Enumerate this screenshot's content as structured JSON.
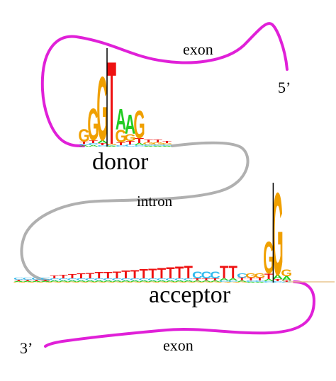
{
  "labels": {
    "exon_top": "exon",
    "prime5": "5’",
    "donor": "donor",
    "intron": "intron",
    "acceptor": "acceptor",
    "prime3": "3’",
    "exon_bottom": "exon"
  },
  "colors": {
    "exon_line": "#e020d8",
    "intron_line": "#b0b0b0",
    "A": "#22cc22",
    "C": "#33bbee",
    "G": "#f0a000",
    "T": "#ee1111",
    "splice_marker": "#000000"
  },
  "donor_logo": {
    "splice_position": 3,
    "stacks": [
      [
        "A",
        "C",
        "T",
        "G"
      ],
      [
        "A",
        "C",
        "T",
        "G"
      ],
      [
        "C",
        "T",
        "A",
        "G"
      ],
      [
        "A",
        "C",
        "G",
        "T"
      ],
      [
        "C",
        "T",
        "G",
        "A"
      ],
      [
        "C",
        "T",
        "G",
        "A"
      ],
      [
        "C",
        "A",
        "T",
        "G"
      ],
      [
        "A",
        "C",
        "G",
        "T"
      ],
      [
        "A",
        "C",
        "G",
        "T"
      ],
      [
        "A",
        "C",
        "G",
        "T"
      ]
    ]
  },
  "acceptor_logo": {
    "splice_position": 29,
    "stacks": [
      [
        "G",
        "A",
        "T",
        "C"
      ],
      [
        "G",
        "A",
        "T",
        "C"
      ],
      [
        "G",
        "A",
        "T",
        "C"
      ],
      [
        "G",
        "A",
        "T",
        "C"
      ],
      [
        "G",
        "A",
        "C",
        "T"
      ],
      [
        "G",
        "A",
        "C",
        "T"
      ],
      [
        "G",
        "A",
        "C",
        "T"
      ],
      [
        "G",
        "A",
        "C",
        "T"
      ],
      [
        "G",
        "A",
        "C",
        "T"
      ],
      [
        "G",
        "A",
        "C",
        "T"
      ],
      [
        "G",
        "A",
        "C",
        "T"
      ],
      [
        "G",
        "A",
        "C",
        "T"
      ],
      [
        "G",
        "A",
        "C",
        "T"
      ],
      [
        "G",
        "A",
        "C",
        "T"
      ],
      [
        "G",
        "A",
        "C",
        "T"
      ],
      [
        "G",
        "A",
        "C",
        "T"
      ],
      [
        "G",
        "A",
        "C",
        "T"
      ],
      [
        "G",
        "A",
        "C",
        "T"
      ],
      [
        "G",
        "A",
        "C",
        "T"
      ],
      [
        "G",
        "A",
        "C",
        "T"
      ],
      [
        "G",
        "A",
        "T",
        "C"
      ],
      [
        "G",
        "A",
        "T",
        "C"
      ],
      [
        "G",
        "A",
        "T",
        "C"
      ],
      [
        "G",
        "C",
        "A",
        "T"
      ],
      [
        "G",
        "C",
        "A",
        "T"
      ],
      [
        "G",
        "A",
        "T",
        "C"
      ],
      [
        "A",
        "C",
        "T",
        "G"
      ],
      [
        "A",
        "C",
        "T",
        "G"
      ],
      [
        "C",
        "A",
        "T",
        "G"
      ],
      [
        "C",
        "T",
        "A",
        "G"
      ],
      [
        "C",
        "T",
        "A",
        "G"
      ]
    ]
  }
}
